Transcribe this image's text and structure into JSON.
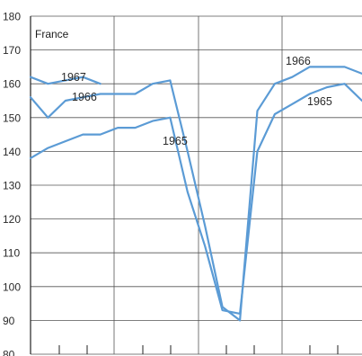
{
  "chart_data": {
    "type": "line",
    "title": "France",
    "xlabel": "",
    "ylabel": "",
    "ylim": [
      80,
      180
    ],
    "yticks": [
      80,
      90,
      100,
      110,
      120,
      130,
      140,
      150,
      160,
      170,
      180
    ],
    "ytick_labels": [
      "80",
      "90",
      "100",
      "110",
      "120",
      "130",
      "140",
      "150",
      "160",
      "170",
      "180"
    ],
    "grid": true,
    "line_color": "#5b9bd5",
    "series": [
      {
        "name": "1967",
        "x": [
          1,
          2,
          3,
          4,
          5
        ],
        "values": [
          162,
          160,
          161,
          162,
          160
        ]
      },
      {
        "name": "1966",
        "x": [
          1,
          2,
          3,
          4,
          5,
          6,
          7,
          8,
          9,
          10,
          11,
          12,
          13,
          14,
          15,
          16,
          17,
          18,
          19,
          20
        ],
        "values": [
          156,
          150,
          155,
          156,
          157,
          157,
          157,
          160,
          161,
          140,
          118,
          94,
          90,
          152,
          160,
          162,
          165,
          165,
          165,
          163
        ]
      },
      {
        "name": "1965",
        "x": [
          1,
          2,
          3,
          4,
          5,
          6,
          7,
          8,
          9,
          10,
          11,
          12,
          13,
          14,
          15,
          16,
          17,
          18,
          19,
          20
        ],
        "values": [
          138,
          141,
          143,
          145,
          145,
          147,
          147,
          149,
          150,
          128,
          112,
          93,
          92,
          140,
          151,
          154,
          157,
          159,
          160,
          155
        ]
      }
    ],
    "annotations": [
      "1967",
      "1966",
      "1965",
      "1966",
      "1965"
    ]
  }
}
